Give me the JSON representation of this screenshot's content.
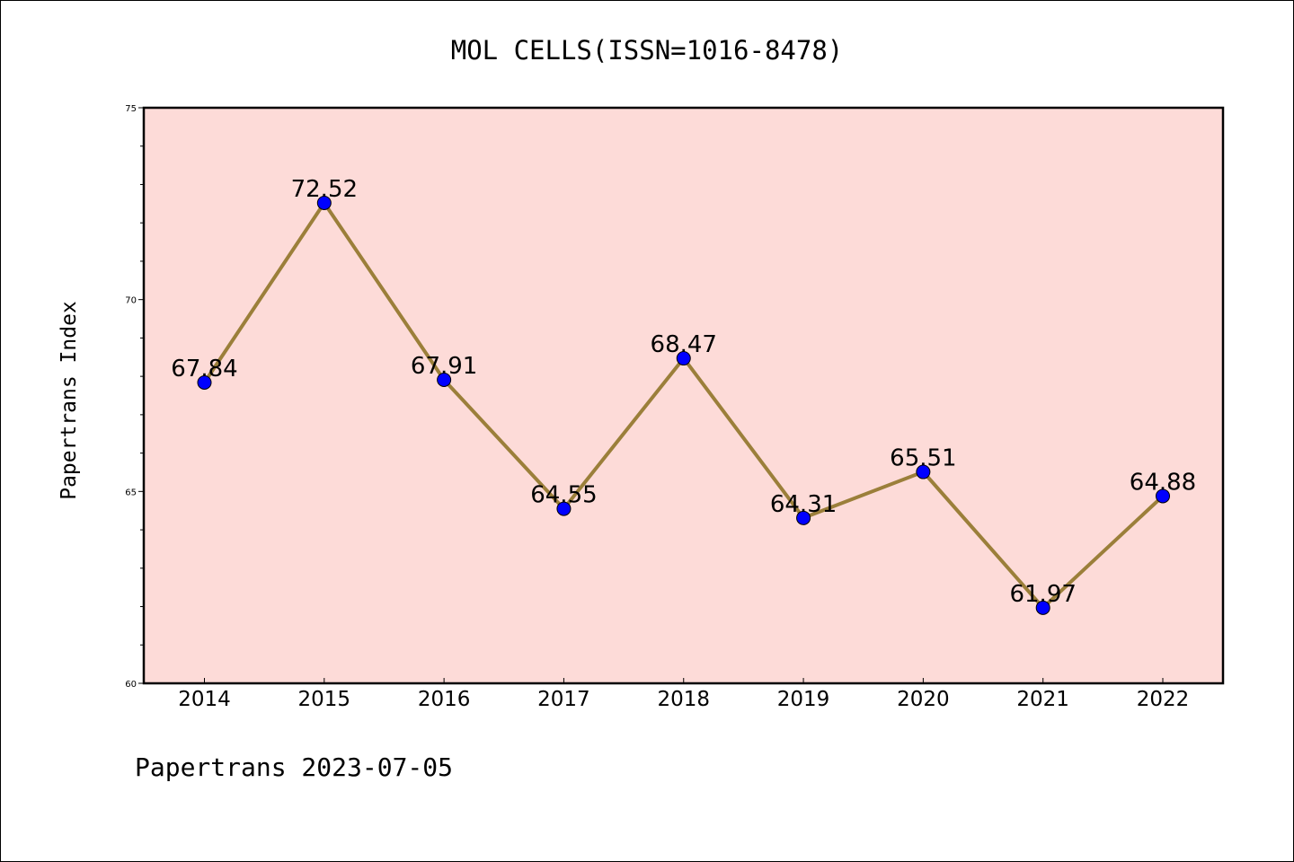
{
  "chart_data": {
    "type": "line",
    "title": "MOL CELLS(ISSN=1016-8478)",
    "xlabel": "",
    "ylabel": "Papertrans Index",
    "categories": [
      "2014",
      "2015",
      "2016",
      "2017",
      "2018",
      "2019",
      "2020",
      "2021",
      "2022"
    ],
    "series": [
      {
        "values": [
          67.84,
          72.52,
          67.91,
          64.55,
          68.47,
          64.31,
          65.51,
          61.97,
          64.88
        ],
        "labels": [
          "67.84",
          "72.52",
          "67.91",
          "64.55",
          "68.47",
          "64.31",
          "65.51",
          "61.97",
          "64.88"
        ]
      }
    ],
    "ylim": [
      60,
      75
    ],
    "yticks": [
      "60",
      "65",
      "70",
      "75"
    ],
    "grid": false,
    "colors": {
      "plot_background": "#fddbd8",
      "line": "#9b7f3a",
      "marker": "#0000ff"
    }
  },
  "footer": {
    "text": "Papertrans 2023-07-05"
  }
}
